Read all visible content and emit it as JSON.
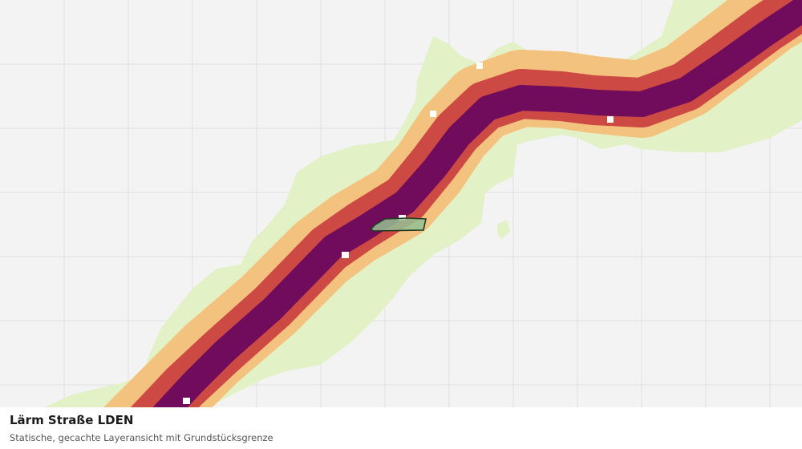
{
  "map": {
    "title": "Lärm Straße LDEN",
    "subtitle": "Statische, gecachte Layeransicht mit Grundstücksgrenze"
  },
  "colors": {
    "background": "#f2f3f2",
    "grid": "#dedfde",
    "band_low": "#e3f1c6",
    "band_medium": "#f4c27f",
    "band_high": "#cd4944",
    "band_very_high": "#710b5c",
    "parcel_fill": "#93c193",
    "parcel_stroke": "#233b23"
  }
}
